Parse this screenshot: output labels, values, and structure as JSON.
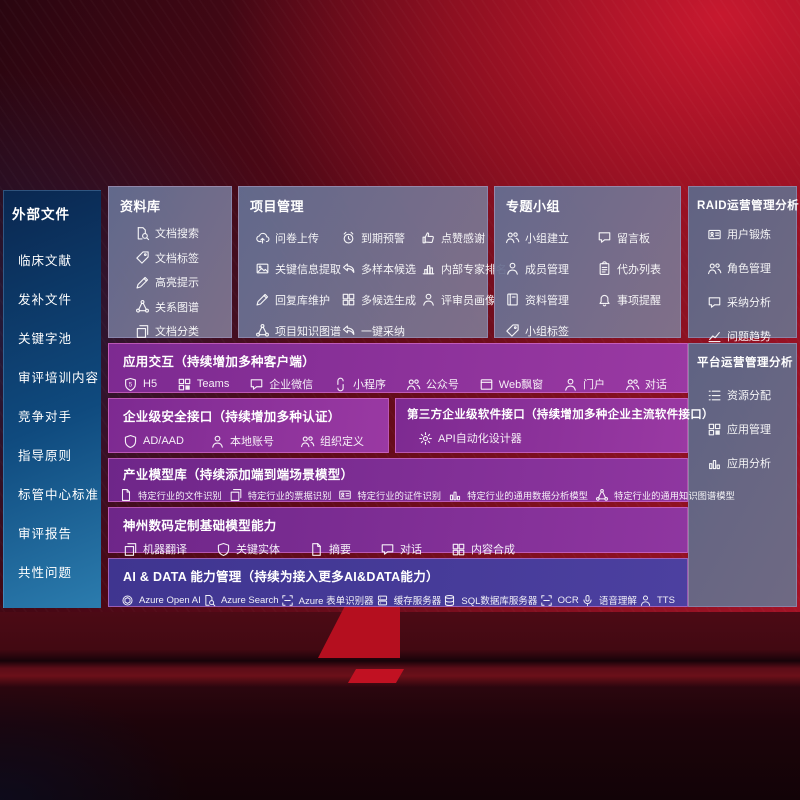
{
  "colors": {
    "background_red": "#a61223",
    "panel_gray": "#6f7390",
    "left_panel_blue_top": "#0a2750",
    "left_panel_blue_bottom": "#2b7cae",
    "purple_row": "#8a2f97",
    "indigo_row": "#45399a",
    "border_pink": "#e878c8"
  },
  "left_panel": {
    "title": "外部文件",
    "items": [
      "临床文献",
      "发补文件",
      "关键字池",
      "审评培训内容",
      "竞争对手",
      "指导原则",
      "标管中心标准",
      "审评报告",
      "共性问题"
    ]
  },
  "panels": {
    "repository": {
      "title": "资料库",
      "items": [
        {
          "icon": "doc-search",
          "label": "文档搜索"
        },
        {
          "icon": "tag",
          "label": "文档标签"
        },
        {
          "icon": "pencil",
          "label": "高亮提示"
        },
        {
          "icon": "network",
          "label": "关系图谱"
        },
        {
          "icon": "docs",
          "label": "文档分类"
        }
      ]
    },
    "project": {
      "title": "项目管理",
      "items": [
        {
          "icon": "cloud-upload",
          "label": "问卷上传"
        },
        {
          "icon": "alarm",
          "label": "到期预警"
        },
        {
          "icon": "thumbs-up",
          "label": "点赞感谢"
        },
        {
          "icon": "image",
          "label": "关键信息提取"
        },
        {
          "icon": "reply-arrow",
          "label": "多样本候选"
        },
        {
          "icon": "podium",
          "label": "内部专家排名"
        },
        {
          "icon": "pencil",
          "label": "回复库维护"
        },
        {
          "icon": "puzzle",
          "label": "多候选生成"
        },
        {
          "icon": "person",
          "label": "评审员画像"
        },
        {
          "icon": "network",
          "label": "项目知识图谱"
        },
        {
          "icon": "reply-arrow",
          "label": "一键采纳"
        }
      ]
    },
    "groups": {
      "title": "专题小组",
      "items": [
        {
          "icon": "people",
          "label": "小组建立"
        },
        {
          "icon": "chat",
          "label": "留言板"
        },
        {
          "icon": "person",
          "label": "成员管理"
        },
        {
          "icon": "clipboard",
          "label": "代办列表"
        },
        {
          "icon": "book",
          "label": "资料管理"
        },
        {
          "icon": "bell",
          "label": "事项提醒"
        },
        {
          "icon": "tag",
          "label": "小组标签"
        }
      ]
    },
    "raid": {
      "title": "RAID运营管理分析",
      "items": [
        {
          "icon": "id-card",
          "label": "用户锻炼"
        },
        {
          "icon": "people",
          "label": "角色管理"
        },
        {
          "icon": "chat",
          "label": "采纳分析"
        },
        {
          "icon": "chart-line",
          "label": "问题趋势"
        }
      ]
    },
    "platform": {
      "title": "平台运营管理分析",
      "items": [
        {
          "icon": "list",
          "label": "资源分配"
        },
        {
          "icon": "grid",
          "label": "应用管理"
        },
        {
          "icon": "chart-bar",
          "label": "应用分析"
        }
      ]
    }
  },
  "rows": {
    "interaction": {
      "title": "应用交互（持续增加多种客户端）",
      "items": [
        {
          "icon": "h5",
          "label": "H5"
        },
        {
          "icon": "grid",
          "label": "Teams"
        },
        {
          "icon": "chat",
          "label": "企业微信"
        },
        {
          "icon": "s-curve",
          "label": "小程序"
        },
        {
          "icon": "people",
          "label": "公众号"
        },
        {
          "icon": "window",
          "label": "Web飘窗"
        },
        {
          "icon": "person",
          "label": "门户"
        },
        {
          "icon": "people",
          "label": "对话"
        }
      ]
    },
    "security": {
      "title": "企业级安全接口（持续增加多种认证）",
      "items": [
        {
          "icon": "shield",
          "label": "AD/AAD"
        },
        {
          "icon": "person",
          "label": "本地账号"
        },
        {
          "icon": "people",
          "label": "组织定义"
        }
      ]
    },
    "thirdparty": {
      "title": "第三方企业级软件接口（持续增加多种企业主流软件接口）",
      "items": [
        {
          "icon": "gear",
          "label": "API自动化设计器"
        }
      ]
    },
    "industry": {
      "title": "产业模型库（持续添加端到端场景模型）",
      "items": [
        {
          "icon": "doc",
          "label": "特定行业的文件识别"
        },
        {
          "icon": "docs",
          "label": "特定行业的票据识别"
        },
        {
          "icon": "id-card",
          "label": "特定行业的证件识别"
        },
        {
          "icon": "chart-bar",
          "label": "特定行业的通用数据分析模型"
        },
        {
          "icon": "network",
          "label": "特定行业的通用知识图谱模型"
        }
      ]
    },
    "base": {
      "title": "神州数码定制基础模型能力",
      "items": [
        {
          "icon": "docs",
          "label": "机器翻译"
        },
        {
          "icon": "shield",
          "label": "关键实体"
        },
        {
          "icon": "doc",
          "label": "摘要"
        },
        {
          "icon": "chat",
          "label": "对话"
        },
        {
          "icon": "puzzle",
          "label": "内容合成"
        }
      ]
    },
    "ai": {
      "title": "AI & DATA 能力管理（持续为接入更多AI&DATA能力）",
      "items": [
        {
          "icon": "openai",
          "label": "Azure Open AI"
        },
        {
          "icon": "doc-search",
          "label": "Azure Search"
        },
        {
          "icon": "scan",
          "label": "Azure 表单识别器"
        },
        {
          "icon": "server",
          "label": "缓存服务器"
        },
        {
          "icon": "db",
          "label": "SQL数据库服务器"
        },
        {
          "icon": "ocr-scan",
          "label": "OCR"
        },
        {
          "icon": "mic",
          "label": "语音理解"
        },
        {
          "icon": "person",
          "label": "TTS"
        }
      ]
    }
  }
}
